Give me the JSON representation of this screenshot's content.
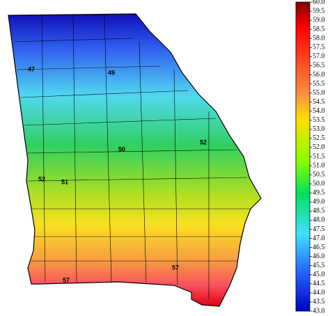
{
  "map_labels": [
    "47",
    "49",
    "52",
    "50",
    "52",
    "51",
    "57",
    "57"
  ],
  "legend": {
    "range": [
      43,
      60
    ],
    "ticks": [
      {
        "value": 60,
        "label": "60.0"
      },
      {
        "value": 59.5,
        "label": "59.5"
      },
      {
        "value": 59,
        "label": "59.0"
      },
      {
        "value": 58.5,
        "label": "58.5"
      },
      {
        "value": 58,
        "label": "58.0"
      },
      {
        "value": 57.5,
        "label": "57.5"
      },
      {
        "value": 57,
        "label": "57.0"
      },
      {
        "value": 56.5,
        "label": "56.5"
      },
      {
        "value": 56,
        "label": "56.0"
      },
      {
        "value": 55.5,
        "label": "55.5"
      },
      {
        "value": 55,
        "label": "55.0"
      },
      {
        "value": 54.5,
        "label": "54.5"
      },
      {
        "value": 54,
        "label": "54.0"
      },
      {
        "value": 53.5,
        "label": "53.5"
      },
      {
        "value": 53,
        "label": "53.0"
      },
      {
        "value": 52.5,
        "label": "52.5"
      },
      {
        "value": 52,
        "label": "52.0"
      },
      {
        "value": 51.5,
        "label": "51.5"
      },
      {
        "value": 51,
        "label": "51.0"
      },
      {
        "value": 50.5,
        "label": "50.5"
      },
      {
        "value": 50,
        "label": "50.0"
      },
      {
        "value": 49.5,
        "label": "49.5"
      },
      {
        "value": 49,
        "label": "49.0"
      },
      {
        "value": 48.5,
        "label": "48.5"
      },
      {
        "value": 48,
        "label": "48.0"
      },
      {
        "value": 47.5,
        "label": "47.5"
      },
      {
        "value": 47,
        "label": "47.0"
      },
      {
        "value": 46.5,
        "label": "46.5"
      },
      {
        "value": 46,
        "label": "46.0"
      },
      {
        "value": 45.5,
        "label": "45.5"
      },
      {
        "value": 45,
        "label": "45.0"
      },
      {
        "value": 44.5,
        "label": "44.5"
      },
      {
        "value": 44,
        "label": "44.0"
      },
      {
        "value": 43.5,
        "label": "43.5"
      },
      {
        "value": 43,
        "label": "43.0"
      }
    ]
  }
}
